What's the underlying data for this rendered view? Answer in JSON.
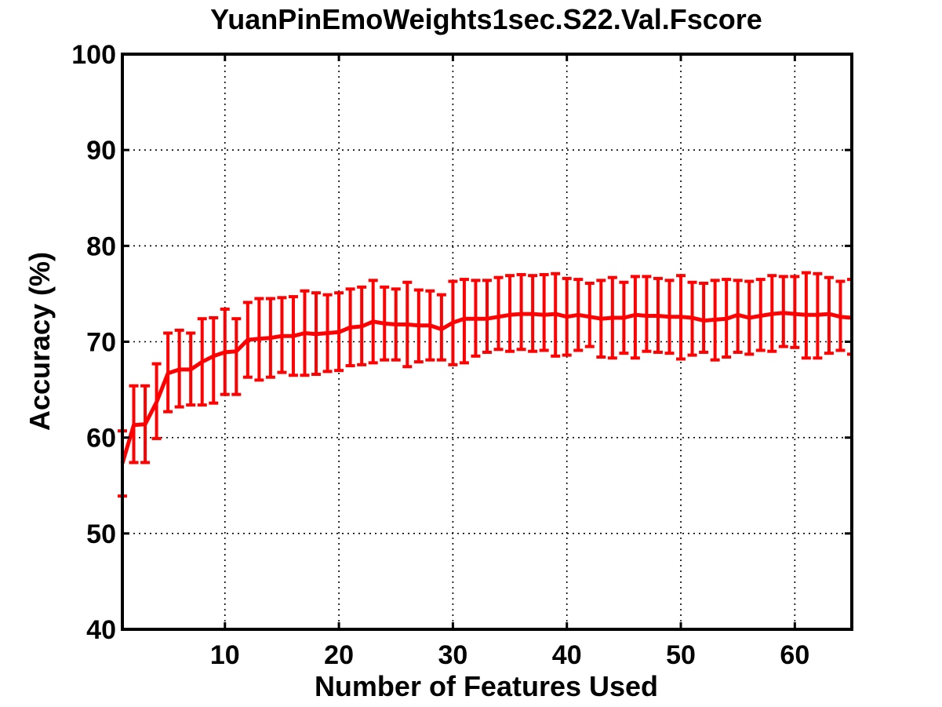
{
  "chart_data": {
    "type": "line",
    "title": "YuanPinEmoWeights1sec.S22.Val.Fscore",
    "xlabel": "Number of Features Used",
    "ylabel": "Accuracy (%)",
    "xlim": [
      1,
      65
    ],
    "ylim": [
      40,
      100
    ],
    "xticks": [
      10,
      20,
      30,
      40,
      50,
      60
    ],
    "yticks": [
      40,
      50,
      60,
      70,
      80,
      90,
      100
    ],
    "grid": true,
    "line_color": "#ff0000",
    "axis_color": "#000000",
    "series": [
      {
        "x": [
          1,
          2,
          3,
          4,
          5,
          6,
          7,
          8,
          9,
          10,
          11,
          12,
          13,
          14,
          15,
          16,
          17,
          18,
          19,
          20,
          21,
          22,
          23,
          24,
          25,
          26,
          27,
          28,
          29,
          30,
          31,
          32,
          33,
          34,
          35,
          36,
          37,
          38,
          39,
          40,
          41,
          42,
          43,
          44,
          45,
          46,
          47,
          48,
          49,
          50,
          51,
          52,
          53,
          54,
          55,
          56,
          57,
          58,
          59,
          60,
          61,
          62,
          63,
          64,
          65
        ],
        "y": [
          57.3,
          61.3,
          61.4,
          63.7,
          66.7,
          67.1,
          67.1,
          67.9,
          68.5,
          68.9,
          69.0,
          70.2,
          70.3,
          70.4,
          70.6,
          70.6,
          70.9,
          70.8,
          70.9,
          71.0,
          71.5,
          71.6,
          72.1,
          71.9,
          71.8,
          71.8,
          71.7,
          71.7,
          71.3,
          72.0,
          72.4,
          72.4,
          72.4,
          72.6,
          72.8,
          72.9,
          72.9,
          72.8,
          72.9,
          72.6,
          72.8,
          72.6,
          72.4,
          72.5,
          72.5,
          72.8,
          72.7,
          72.7,
          72.6,
          72.6,
          72.5,
          72.2,
          72.3,
          72.4,
          72.8,
          72.5,
          72.7,
          72.9,
          73.0,
          72.9,
          72.8,
          72.8,
          72.9,
          72.6,
          72.5
        ],
        "err_low": [
          53.9,
          57.4,
          57.4,
          59.9,
          62.7,
          63.2,
          63.4,
          63.4,
          63.6,
          64.5,
          64.5,
          66.3,
          66.0,
          66.3,
          66.8,
          66.5,
          66.5,
          66.6,
          66.9,
          67.0,
          67.5,
          67.6,
          67.8,
          68.1,
          68.1,
          67.4,
          67.9,
          68.1,
          68.1,
          67.6,
          67.8,
          68.5,
          68.9,
          69.2,
          69.0,
          69.2,
          69.0,
          69.1,
          68.5,
          68.6,
          69.1,
          69.5,
          68.4,
          68.3,
          68.8,
          68.3,
          69.0,
          68.9,
          68.8,
          68.2,
          68.6,
          68.9,
          68.1,
          68.4,
          68.9,
          68.7,
          69.1,
          69.0,
          69.5,
          69.4,
          68.3,
          68.3,
          68.8,
          69.1,
          68.7
        ],
        "err_high": [
          60.7,
          65.4,
          65.4,
          67.7,
          70.9,
          71.2,
          70.9,
          72.4,
          72.5,
          73.4,
          72.4,
          74.1,
          74.5,
          74.5,
          74.6,
          74.7,
          75.3,
          75.1,
          74.9,
          75.1,
          75.5,
          75.7,
          76.4,
          75.7,
          75.5,
          76.2,
          75.4,
          75.3,
          74.9,
          76.3,
          76.5,
          76.4,
          76.4,
          76.7,
          76.9,
          77.0,
          76.9,
          77.0,
          77.1,
          76.6,
          76.5,
          76.1,
          76.4,
          76.7,
          76.2,
          76.8,
          76.8,
          76.6,
          76.4,
          76.9,
          76.2,
          76.1,
          76.4,
          76.5,
          76.4,
          76.3,
          76.5,
          76.9,
          76.8,
          76.8,
          77.2,
          77.1,
          76.7,
          76.3,
          76.5
        ]
      }
    ]
  }
}
